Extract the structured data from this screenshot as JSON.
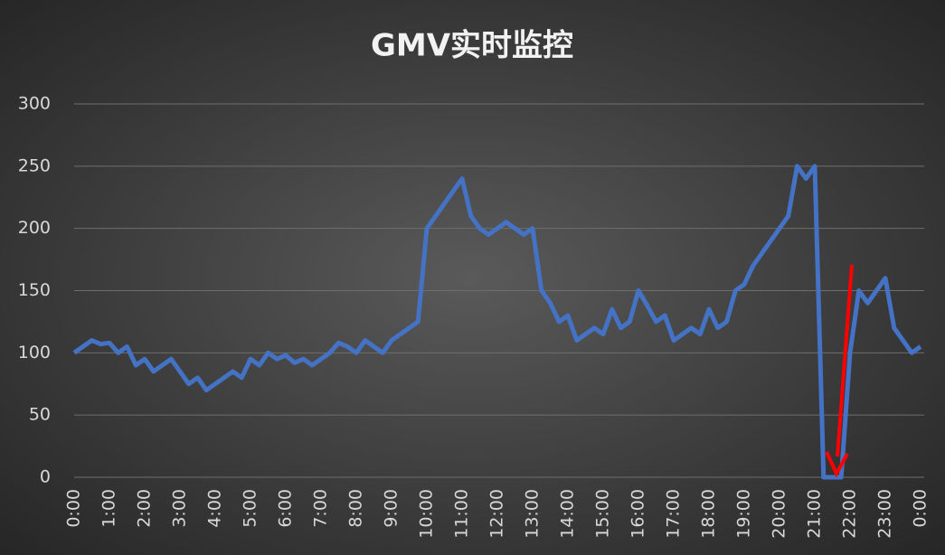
{
  "chart_data": {
    "type": "line",
    "title": "GMV实时监控",
    "categories": [
      "0:00",
      null,
      null,
      null,
      "1:00",
      null,
      null,
      null,
      "2:00",
      null,
      null,
      null,
      "3:00",
      null,
      null,
      null,
      "4:00",
      null,
      null,
      null,
      "5:00",
      null,
      null,
      null,
      "6:00",
      null,
      null,
      null,
      "7:00",
      null,
      null,
      null,
      "8:00",
      null,
      null,
      null,
      "9:00",
      null,
      null,
      null,
      "10:00",
      null,
      null,
      null,
      "11:00",
      null,
      null,
      null,
      "12:00",
      null,
      null,
      null,
      "13:00",
      null,
      null,
      null,
      "14:00",
      null,
      null,
      null,
      "15:00",
      null,
      null,
      null,
      "16:00",
      null,
      null,
      null,
      "17:00",
      null,
      null,
      null,
      "18:00",
      null,
      null,
      null,
      "19:00",
      null,
      null,
      null,
      "20:00",
      null,
      null,
      null,
      "21:00",
      null,
      null,
      null,
      "22:00",
      null,
      null,
      null,
      "23:00",
      null,
      null,
      null,
      "0:00"
    ],
    "values": [
      100,
      105,
      110,
      107,
      108,
      100,
      105,
      90,
      95,
      85,
      90,
      95,
      85,
      75,
      80,
      70,
      75,
      80,
      85,
      80,
      95,
      90,
      100,
      95,
      98,
      92,
      95,
      90,
      95,
      100,
      108,
      105,
      100,
      110,
      105,
      100,
      110,
      115,
      120,
      125,
      200,
      210,
      220,
      230,
      240,
      210,
      200,
      195,
      200,
      205,
      200,
      195,
      200,
      150,
      140,
      125,
      130,
      110,
      115,
      120,
      115,
      135,
      120,
      125,
      150,
      138,
      125,
      130,
      110,
      115,
      120,
      115,
      135,
      120,
      125,
      150,
      155,
      170,
      180,
      190,
      200,
      210,
      250,
      240,
      250,
      0,
      0,
      0,
      100,
      150,
      140,
      150,
      160,
      120,
      110,
      100,
      105
    ],
    "color": "#4472c4",
    "ylim": [
      0,
      300
    ],
    "yticks": [
      0,
      50,
      100,
      150,
      200,
      250,
      300
    ],
    "grid": true
  }
}
